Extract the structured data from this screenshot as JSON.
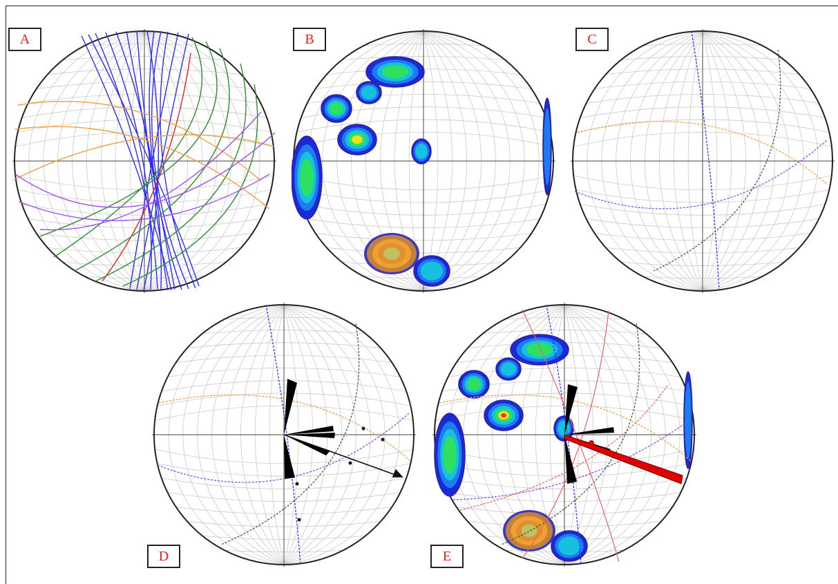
{
  "panels": [
    {
      "id": "A",
      "label": "A"
    },
    {
      "id": "B",
      "label": "B"
    },
    {
      "id": "C",
      "label": "C"
    },
    {
      "id": "D",
      "label": "D"
    },
    {
      "id": "E",
      "label": "E"
    }
  ],
  "colors": {
    "blue_planes": "#2b2bff",
    "green_planes": "#2e8b2e",
    "orange_planes": "#f0a040",
    "purple_planes": "#a050f0",
    "red_plane": "#e82020",
    "label_text": "#e8201a",
    "rose_diagram": "#000000",
    "slip_vector": "#e00000"
  }
}
